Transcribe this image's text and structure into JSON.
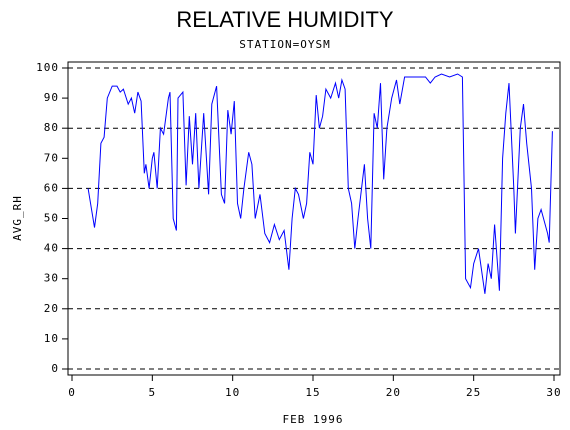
{
  "chart_data": {
    "type": "line",
    "title": "RELATIVE HUMIDITY",
    "subtitle": "STATION=OYSM",
    "x_label": "FEB 1996",
    "y_label": "AVG_RH",
    "color": "#0000ff",
    "grid": true,
    "xlim": [
      0,
      30
    ],
    "xticks": [
      0,
      5,
      10,
      15,
      20,
      25,
      30
    ],
    "ylim": [
      0,
      100
    ],
    "yticks": [
      0,
      10,
      20,
      30,
      40,
      50,
      60,
      70,
      80,
      90,
      100
    ],
    "x": [
      1.0,
      1.4,
      1.6,
      1.8,
      2.0,
      2.2,
      2.5,
      2.8,
      3.0,
      3.2,
      3.5,
      3.7,
      3.9,
      4.1,
      4.3,
      4.5,
      4.6,
      4.8,
      5.0,
      5.1,
      5.3,
      5.5,
      5.7,
      6.0,
      6.1,
      6.3,
      6.5,
      6.6,
      6.9,
      7.1,
      7.3,
      7.5,
      7.7,
      7.9,
      8.2,
      8.5,
      8.7,
      9.0,
      9.3,
      9.5,
      9.7,
      9.9,
      10.1,
      10.3,
      10.5,
      10.7,
      11.0,
      11.2,
      11.4,
      11.7,
      12.0,
      12.3,
      12.6,
      12.9,
      13.2,
      13.5,
      13.7,
      13.9,
      14.1,
      14.4,
      14.6,
      14.8,
      15.0,
      15.2,
      15.4,
      15.6,
      15.8,
      16.1,
      16.4,
      16.6,
      16.8,
      17.0,
      17.2,
      17.4,
      17.6,
      17.8,
      18.2,
      18.4,
      18.6,
      18.8,
      19.0,
      19.2,
      19.4,
      19.6,
      19.9,
      20.2,
      20.4,
      20.7,
      21.0,
      21.5,
      22.0,
      22.3,
      22.6,
      23.0,
      23.5,
      24.0,
      24.3,
      24.5,
      24.8,
      25.0,
      25.3,
      25.7,
      25.9,
      26.1,
      26.3,
      26.6,
      26.8,
      27.0,
      27.2,
      27.5,
      27.6,
      27.9,
      28.1,
      28.3,
      28.6,
      28.8,
      29.0,
      29.2,
      29.6,
      29.7,
      29.9
    ],
    "values": [
      60,
      47,
      55,
      75,
      77,
      90,
      94,
      94,
      92,
      93,
      88,
      90,
      85,
      92,
      89,
      65,
      68,
      60,
      70,
      72,
      60,
      80,
      78,
      90,
      92,
      50,
      46,
      90,
      92,
      61,
      84,
      68,
      85,
      60,
      85,
      58,
      88,
      94,
      58,
      55,
      86,
      78,
      89,
      55,
      50,
      60,
      72,
      68,
      50,
      58,
      45,
      42,
      48,
      43,
      46,
      33,
      50,
      60,
      58,
      50,
      55,
      72,
      68,
      91,
      80,
      84,
      93,
      90,
      95,
      90,
      96,
      93,
      60,
      55,
      40,
      50,
      68,
      50,
      40,
      85,
      80,
      95,
      63,
      80,
      90,
      96,
      88,
      97,
      97,
      97,
      97,
      95,
      97,
      98,
      97,
      98,
      97,
      30,
      27,
      35,
      40,
      25,
      35,
      30,
      48,
      26,
      70,
      85,
      95,
      60,
      45,
      80,
      88,
      75,
      60,
      33,
      50,
      53,
      45,
      42,
      79
    ]
  }
}
